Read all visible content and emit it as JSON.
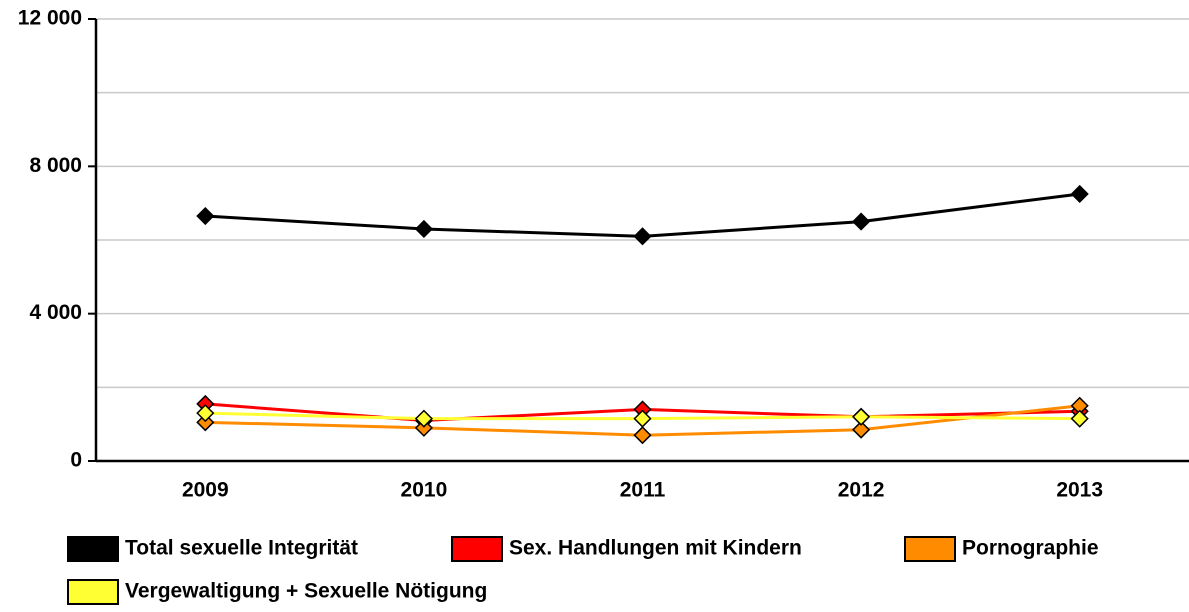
{
  "chart_data": {
    "type": "line",
    "categories": [
      "2009",
      "2010",
      "2011",
      "2012",
      "2013"
    ],
    "series": [
      {
        "name": "Total sexuelle Integrität",
        "color": "#000000",
        "values": [
          6650,
          6300,
          6100,
          6500,
          7250
        ]
      },
      {
        "name": "Sex. Handlungen mit Kindern",
        "color": "#ff0000",
        "values": [
          1550,
          1100,
          1400,
          1200,
          1350
        ]
      },
      {
        "name": "Pornographie",
        "color": "#ff8c00",
        "values": [
          1050,
          900,
          700,
          850,
          1500
        ]
      },
      {
        "name": "Vergewaltigung + Sexuelle Nötigung",
        "color": "#ffff33",
        "values": [
          1300,
          1150,
          1150,
          1200,
          1150
        ]
      }
    ],
    "ylim": [
      0,
      12000
    ],
    "yticks": [
      0,
      {
        "value": 4000,
        "label": "4 000"
      },
      {
        "value": 8000,
        "label": "8 000"
      },
      {
        "value": 12000,
        "label": "12 000"
      }
    ],
    "ygrid": [
      2000,
      4000,
      6000,
      8000,
      10000,
      12000
    ],
    "grid": true,
    "legend": "bottom"
  }
}
